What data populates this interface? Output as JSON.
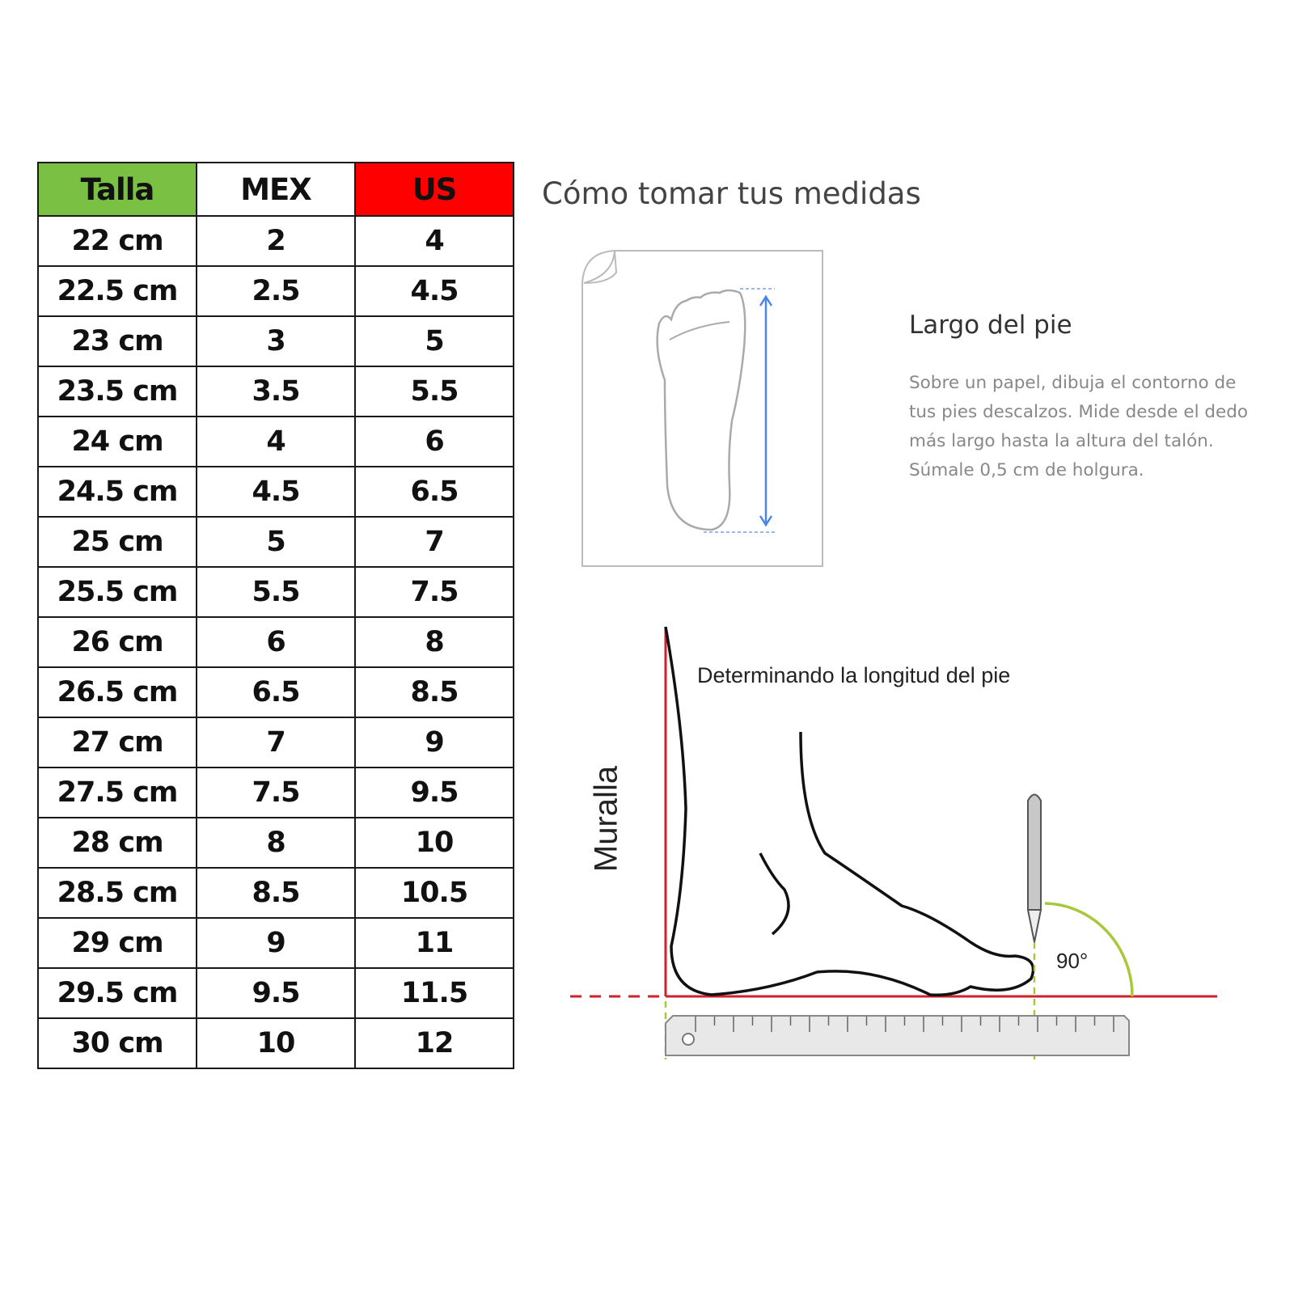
{
  "table": {
    "headers": [
      "Talla",
      "MEX",
      "US"
    ],
    "header_colors": {
      "talla": "#7ac143",
      "us": "#ff0000"
    },
    "rows": [
      [
        "22 cm",
        "2",
        "4"
      ],
      [
        "22.5 cm",
        "2.5",
        "4.5"
      ],
      [
        "23 cm",
        "3",
        "5"
      ],
      [
        "23.5 cm",
        "3.5",
        "5.5"
      ],
      [
        "24 cm",
        "4",
        "6"
      ],
      [
        "24.5 cm",
        "4.5",
        "6.5"
      ],
      [
        "25 cm",
        "5",
        "7"
      ],
      [
        "25.5 cm",
        "5.5",
        "7.5"
      ],
      [
        "26 cm",
        "6",
        "8"
      ],
      [
        "26.5 cm",
        "6.5",
        "8.5"
      ],
      [
        "27 cm",
        "7",
        "9"
      ],
      [
        "27.5 cm",
        "7.5",
        "9.5"
      ],
      [
        "28 cm",
        "8",
        "10"
      ],
      [
        "28.5 cm",
        "8.5",
        "10.5"
      ],
      [
        "29 cm",
        "9",
        "11"
      ],
      [
        "29.5 cm",
        "9.5",
        "11.5"
      ],
      [
        "30 cm",
        "10",
        "12"
      ]
    ]
  },
  "guide": {
    "title": "Cómo tomar tus medidas",
    "section_title": "Largo del pie",
    "description": "Sobre un papel, dibuja el contorno de tus pies descalzos. Mide desde el dedo más largo hasta la altura del talón. Súmale 0,5 cm de holgura.",
    "diagram_title": "Determinando la longitud del pie",
    "wall_label": "Muralla",
    "angle_label": "90°",
    "colors": {
      "arrow": "#4a86e8",
      "wall_floor": "#d0202a",
      "angle_arc": "#a8c83c"
    }
  }
}
